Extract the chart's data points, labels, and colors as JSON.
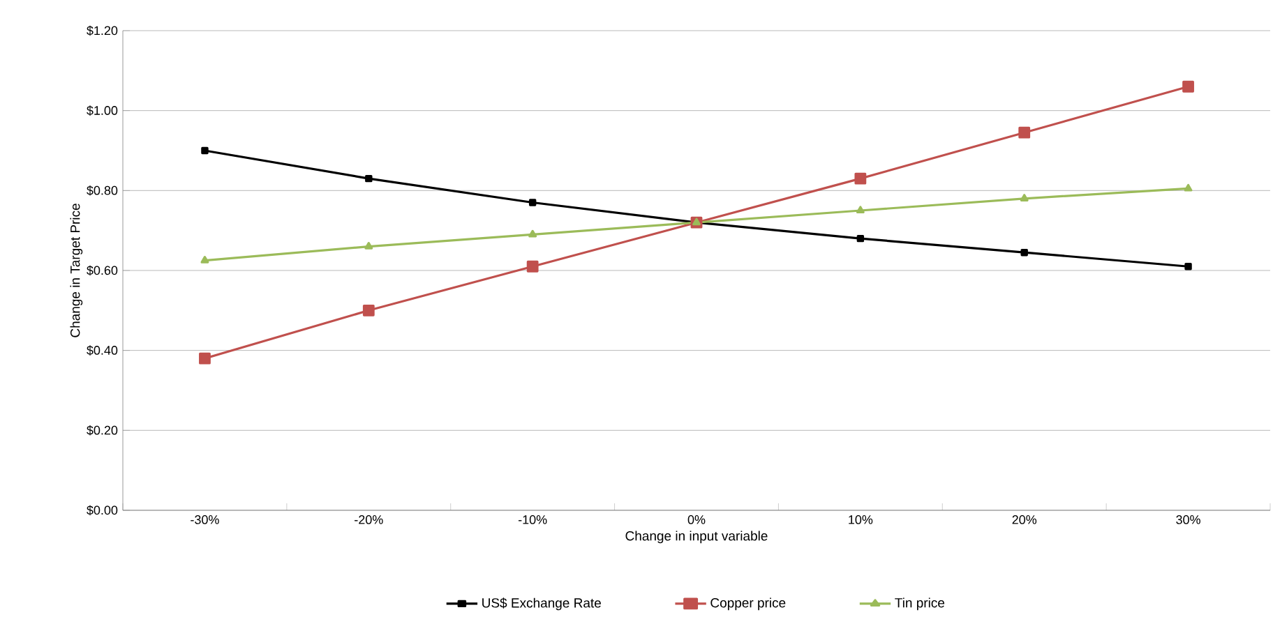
{
  "chart_data": {
    "type": "line",
    "xlabel": "Change  in input variable",
    "ylabel": "Change  in Target  Price",
    "categories": [
      "-30%",
      "-20%",
      "-10%",
      "0%",
      "10%",
      "20%",
      "30%"
    ],
    "series": [
      {
        "name": "US$ Exchange Rate",
        "color": "#000000",
        "marker": "square",
        "values": [
          0.9,
          0.83,
          0.77,
          0.72,
          0.68,
          0.645,
          0.61
        ]
      },
      {
        "name": "Copper price",
        "color": "#c0504d",
        "marker": "square",
        "values": [
          0.38,
          0.5,
          0.61,
          0.72,
          0.83,
          0.945,
          1.06
        ]
      },
      {
        "name": "Tin price",
        "color": "#9bbb59",
        "marker": "triangle",
        "values": [
          0.625,
          0.66,
          0.69,
          0.72,
          0.75,
          0.78,
          0.805
        ]
      }
    ],
    "ylim": [
      0,
      1.2
    ],
    "yticks": [
      {
        "value": 0,
        "label": "$0.00"
      },
      {
        "value": 0.2,
        "label": "$0.20"
      },
      {
        "value": 0.4,
        "label": "$0.40"
      },
      {
        "value": 0.6,
        "label": "$0.60"
      },
      {
        "value": 0.8,
        "label": "$0.80"
      },
      {
        "value": 1.0,
        "label": "$1.00"
      },
      {
        "value": 1.2,
        "label": "$1.20"
      }
    ],
    "grid": "y",
    "legend": "bottom"
  }
}
